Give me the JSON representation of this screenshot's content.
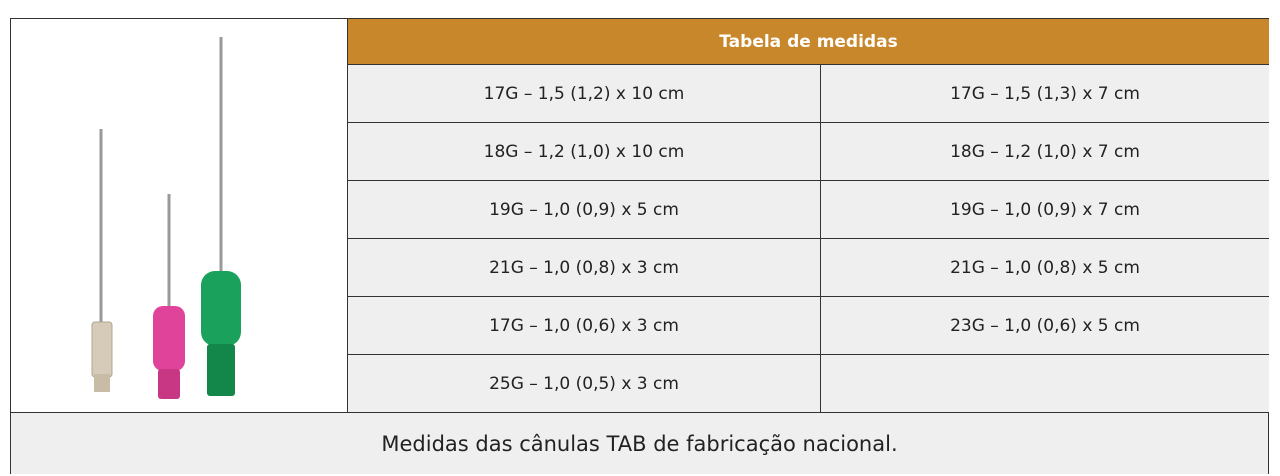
{
  "table": {
    "header": "Tabela de medidas",
    "rows": [
      [
        "17G – 1,5 (1,2) x 10 cm",
        "17G – 1,5 (1,3) x 7 cm"
      ],
      [
        "18G – 1,2 (1,0) x 10 cm",
        "18G – 1,2 (1,0) x 7 cm"
      ],
      [
        "19G – 1,0 (0,9) x 5 cm",
        "19G – 1,0 (0,9) x 7 cm"
      ],
      [
        "21G – 1,0 (0,8) x 3 cm",
        "21G – 1,0 (0,8) x 5 cm"
      ],
      [
        "17G – 1,0 (0,6) x 3 cm",
        "23G – 1,0 (0,6) x 5 cm"
      ],
      [
        "25G – 1,0 (0,5) x 3 cm"
      ]
    ],
    "caption": "Medidas das cânulas TAB de fabricação nacional."
  }
}
